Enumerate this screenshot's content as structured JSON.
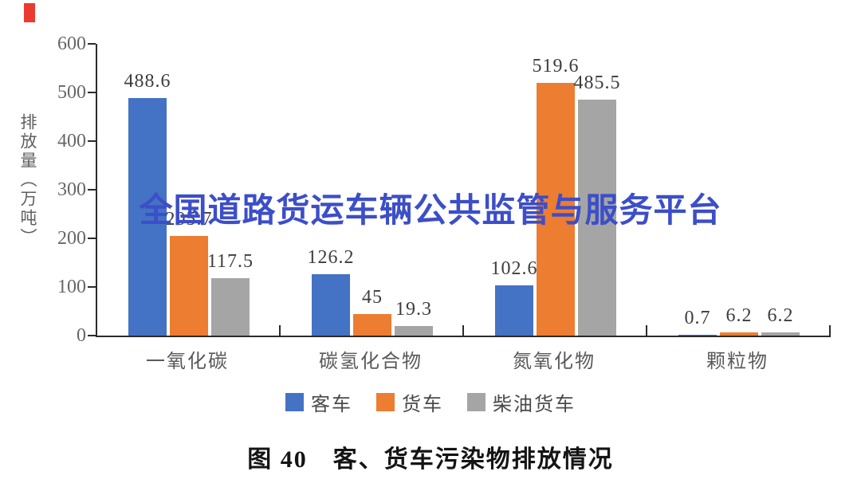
{
  "page": {
    "background": "#ffffff",
    "red_mark_color": "#ea3b2e",
    "axis_color": "#2b2b2b"
  },
  "watermark": {
    "text": "全国道路货运车辆公共监管与服务平台",
    "color": "#3c4ec8"
  },
  "caption": {
    "text": "图 40　客、货车污染物排放情况"
  },
  "chart_data": {
    "type": "bar",
    "title": "",
    "xlabel": "",
    "ylabel": "排放量（万吨）",
    "ylim": [
      0,
      600
    ],
    "yticks": [
      0,
      100,
      200,
      300,
      400,
      500,
      600
    ],
    "grid": false,
    "legend_position": "bottom",
    "categories": [
      "一氧化碳",
      "碳氢化合物",
      "氮氧化物",
      "颗粒物"
    ],
    "series": [
      {
        "name": "客车",
        "color": "#4472c4",
        "values": [
          488.6,
          126.2,
          102.6,
          0.7
        ]
      },
      {
        "name": "货车",
        "color": "#ed7d31",
        "values": [
          205.7,
          45,
          519.6,
          6.2
        ]
      },
      {
        "name": "柴油货车",
        "color": "#a5a5a5",
        "values": [
          117.5,
          19.3,
          485.5,
          6.2
        ]
      }
    ]
  }
}
